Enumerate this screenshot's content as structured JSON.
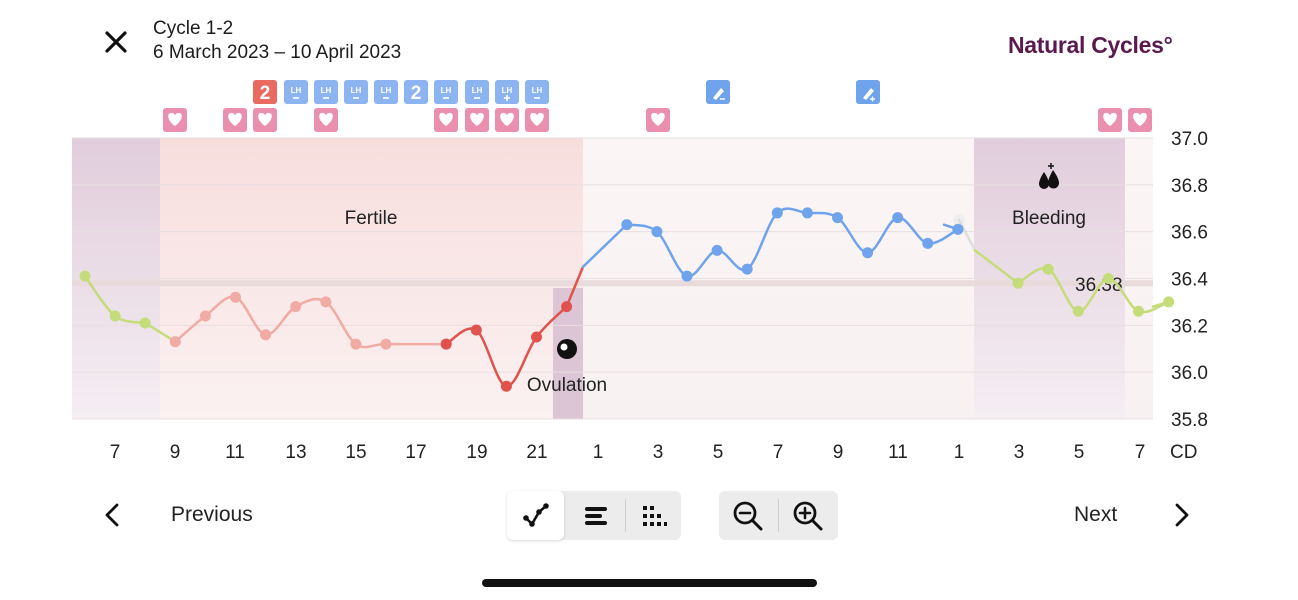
{
  "header": {
    "title": "Cycle 1-2",
    "dates": "6 March 2023 – 10 April 2023",
    "brand": "Natural Cycles°"
  },
  "chart_data": {
    "type": "line",
    "ylim": [
      35.8,
      37.0
    ],
    "yticks": [
      "37.0",
      "36.8",
      "36.6",
      "36.4",
      "36.2",
      "36.0",
      "35.8"
    ],
    "cover_line": 36.38,
    "cover_line_label": "36.38",
    "x_axis_labels": [
      "7",
      "9",
      "11",
      "13",
      "15",
      "17",
      "19",
      "21",
      "1",
      "3",
      "5",
      "7",
      "9",
      "11",
      "1",
      "3",
      "5",
      "7"
    ],
    "x_axis_unit": "CD",
    "phase_labels": {
      "fertile": "Fertile",
      "ovulation": "Ovulation",
      "bleeding": "Bleeding"
    },
    "series": [
      {
        "segment": "previous-cycle-end",
        "color": "#c5dc7a",
        "x": [
          7,
          8,
          9
        ],
        "values": [
          36.41,
          36.24,
          36.21
        ]
      },
      {
        "segment": "follicular",
        "color": "#f2aaa4",
        "x": [
          9,
          10,
          11,
          12,
          13,
          14,
          15,
          16,
          18
        ],
        "values": [
          36.13,
          36.24,
          36.32,
          36.16,
          36.28,
          36.3,
          36.12,
          36.12,
          36.12
        ]
      },
      {
        "segment": "pre-ovulation",
        "color": "#e0524b",
        "x": [
          18,
          19,
          20,
          21,
          22
        ],
        "values": [
          36.12,
          36.18,
          35.94,
          36.15,
          36.28
        ]
      },
      {
        "segment": "luteal",
        "color": "#6fa3ec",
        "x": [
          1,
          2,
          3,
          4,
          5,
          6,
          7,
          8,
          9,
          10,
          11,
          12
        ],
        "values": [
          36.63,
          36.6,
          36.41,
          36.52,
          36.44,
          36.68,
          36.68,
          36.66,
          36.51,
          36.66,
          36.55,
          36.61
        ]
      },
      {
        "segment": "next-cycle",
        "color": "#c5dc7a",
        "x": [
          2,
          3,
          4,
          5,
          6,
          7
        ],
        "values": [
          36.38,
          36.44,
          36.26,
          36.4,
          36.26,
          36.3
        ]
      }
    ],
    "colors": {
      "previous_cycle": "#c5dc7a",
      "follicular": "#f2aaa4",
      "pre_ovulation": "#e0524b",
      "luteal": "#6fa3ec",
      "next_cycle": "#c5dc7a",
      "brand": "#5a1a4e",
      "heart_badge": "#eb8fae",
      "lh_badge": "#8cb4f0",
      "result_badge": "#e96a5e"
    }
  },
  "markers": {
    "result_two": "2",
    "lh": "LH",
    "heart_icon": "heart-icon",
    "note_icon": "pencil-icon",
    "ovulation_icon": "ovulation-egg-icon",
    "bleeding_icon": "blood-drops-icon"
  },
  "footer": {
    "previous_label": "Previous",
    "next_label": "Next",
    "view_buttons": [
      "line-graph-icon",
      "list-bars-icon",
      "dots-grid-icon"
    ],
    "zoom_buttons": [
      "zoom-out-icon",
      "zoom-in-icon"
    ]
  }
}
